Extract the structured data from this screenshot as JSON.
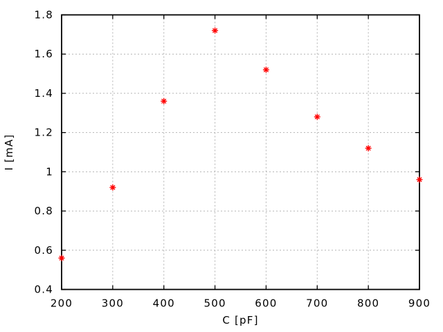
{
  "chart_data": {
    "type": "scatter",
    "title": "",
    "xlabel": "C [pF]",
    "ylabel": "I [mA]",
    "x": [
      200,
      300,
      400,
      500,
      600,
      700,
      800,
      900
    ],
    "y": [
      0.56,
      0.92,
      1.36,
      1.72,
      1.52,
      1.28,
      1.12,
      0.96
    ],
    "xlim": [
      200,
      900
    ],
    "ylim": [
      0.4,
      1.8
    ],
    "x_ticks": [
      200,
      300,
      400,
      500,
      600,
      700,
      800,
      900
    ],
    "y_ticks": [
      0.4,
      0.6,
      0.8,
      1.0,
      1.2,
      1.4,
      1.6,
      1.8
    ],
    "x_tick_labels": [
      "200",
      "300",
      "400",
      "500",
      "600",
      "700",
      "800",
      "900"
    ],
    "y_tick_labels": [
      "0.4",
      "0.6",
      "0.8",
      "1",
      "1.2",
      "1.4",
      "1.6",
      "1.8"
    ],
    "grid": true,
    "grid_style": "dotted",
    "legend": "none",
    "marker": "asterisk",
    "colors": {
      "marker": "#ff0000",
      "grid": "#b2b2b2",
      "axis": "#000000",
      "text": "#000000",
      "background": "#ffffff"
    }
  }
}
